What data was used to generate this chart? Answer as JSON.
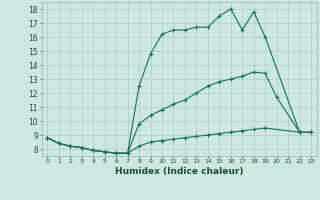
{
  "bg_color": "#cce8e0",
  "grid_color": "#aacccc",
  "line_color": "#1a6b5a",
  "xlabel": "Humidex (Indice chaleur)",
  "xlim": [
    -0.5,
    23.5
  ],
  "ylim": [
    7.5,
    18.5
  ],
  "yticks": [
    8,
    9,
    10,
    11,
    12,
    13,
    14,
    15,
    16,
    17,
    18
  ],
  "xticks": [
    0,
    1,
    2,
    3,
    4,
    5,
    6,
    7,
    8,
    9,
    10,
    11,
    12,
    13,
    14,
    15,
    16,
    17,
    18,
    19,
    20,
    21,
    22,
    23
  ],
  "line1_x": [
    0,
    1,
    2,
    3,
    4,
    5,
    6,
    7,
    8,
    9,
    10,
    11,
    12,
    13,
    14,
    15,
    16,
    17,
    18,
    19,
    22,
    23
  ],
  "line1_y": [
    8.8,
    8.4,
    8.2,
    8.1,
    7.9,
    7.8,
    7.7,
    7.7,
    8.2,
    8.5,
    8.6,
    8.7,
    8.8,
    8.9,
    9.0,
    9.1,
    9.2,
    9.3,
    9.4,
    9.5,
    9.2,
    9.2
  ],
  "line2_x": [
    0,
    1,
    2,
    3,
    4,
    5,
    6,
    7,
    8,
    9,
    10,
    11,
    12,
    13,
    14,
    15,
    16,
    17,
    18,
    19,
    20,
    22,
    23
  ],
  "line2_y": [
    8.8,
    8.4,
    8.2,
    8.1,
    7.9,
    7.8,
    7.7,
    7.7,
    9.8,
    10.4,
    10.8,
    11.2,
    11.5,
    12.0,
    12.5,
    12.8,
    13.0,
    13.2,
    13.5,
    13.4,
    11.7,
    9.2,
    9.2
  ],
  "line3_x": [
    0,
    1,
    2,
    3,
    4,
    5,
    6,
    7,
    8,
    9,
    10,
    11,
    12,
    13,
    14,
    15,
    16,
    17,
    18,
    19,
    22
  ],
  "line3_y": [
    8.8,
    8.4,
    8.2,
    8.1,
    7.9,
    7.8,
    7.7,
    7.7,
    12.5,
    14.8,
    16.2,
    16.5,
    16.5,
    16.7,
    16.7,
    17.5,
    18.0,
    16.5,
    17.8,
    16.0,
    9.2
  ]
}
